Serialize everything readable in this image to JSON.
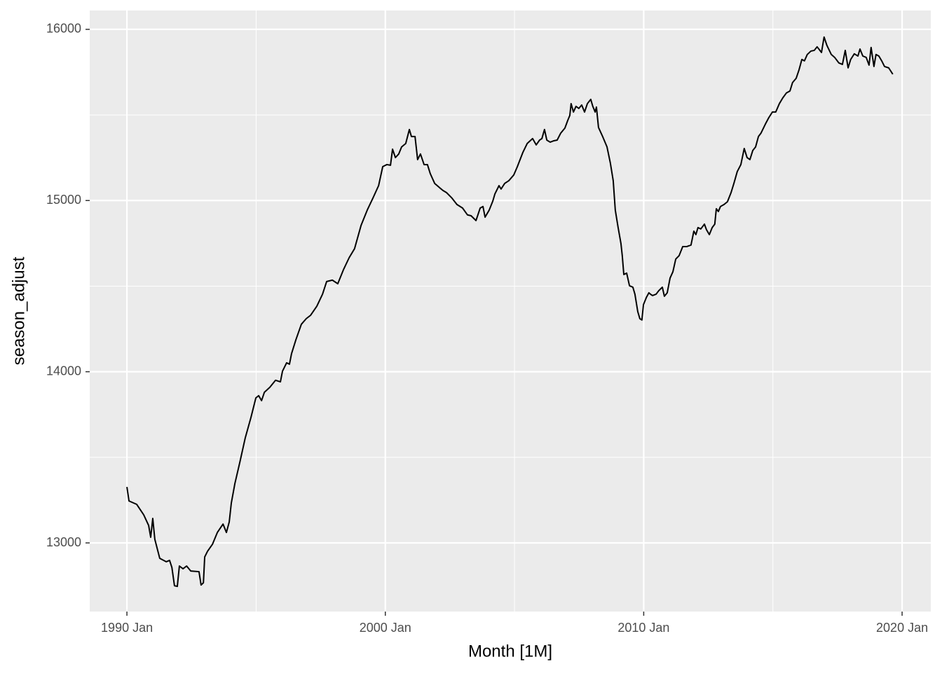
{
  "chart_data": {
    "type": "line",
    "x_label": "Month [1M]",
    "y_label": "season_adjust",
    "color": "#000000",
    "grid": true,
    "xlim": [
      1988.56,
      2021.11
    ],
    "ylim": [
      12599,
      16110
    ],
    "xticks": [
      {
        "value": 1990,
        "label": "1990 Jan"
      },
      {
        "value": 2000,
        "label": "2000 Jan"
      },
      {
        "value": 2010,
        "label": "2010 Jan"
      },
      {
        "value": 2020,
        "label": "2020 Jan"
      }
    ],
    "yticks": [
      13000,
      14000,
      15000,
      16000
    ],
    "x_minor_breaks": [
      1995,
      2005,
      2015
    ],
    "y_minor_breaks": [
      12500,
      13500,
      14500,
      15500
    ],
    "x": [
      1990.0,
      1990.08,
      1990.38,
      1990.65,
      1990.84,
      1990.92,
      1991.0,
      1991.08,
      1991.27,
      1991.52,
      1991.65,
      1991.74,
      1991.84,
      1991.95,
      1992.03,
      1992.17,
      1992.31,
      1992.47,
      1992.79,
      1992.87,
      1992.96,
      1993.01,
      1993.12,
      1993.31,
      1993.5,
      1993.72,
      1993.85,
      1993.96,
      1994.04,
      1994.18,
      1994.37,
      1994.58,
      1994.8,
      1994.99,
      1995.1,
      1995.21,
      1995.32,
      1995.53,
      1995.75,
      1995.94,
      1996.02,
      1996.18,
      1996.29,
      1996.37,
      1996.54,
      1996.75,
      1996.94,
      1997.11,
      1997.35,
      1997.57,
      1997.73,
      1997.95,
      1998.16,
      1998.38,
      1998.6,
      1998.81,
      1999.06,
      1999.3,
      1999.52,
      1999.74,
      1999.9,
      2000.06,
      2000.2,
      2000.28,
      2000.39,
      2000.52,
      2000.63,
      2000.79,
      2000.93,
      2001.01,
      2001.15,
      2001.25,
      2001.36,
      2001.5,
      2001.63,
      2001.74,
      2001.91,
      2002.1,
      2002.23,
      2002.37,
      2002.58,
      2002.77,
      2002.99,
      2003.18,
      2003.32,
      2003.51,
      2003.67,
      2003.78,
      2003.86,
      2004.02,
      2004.16,
      2004.24,
      2004.4,
      2004.48,
      2004.62,
      2004.78,
      2004.97,
      2005.11,
      2005.32,
      2005.49,
      2005.7,
      2005.84,
      2005.97,
      2006.06,
      2006.16,
      2006.25,
      2006.38,
      2006.52,
      2006.65,
      2006.79,
      2006.95,
      2007.06,
      2007.14,
      2007.19,
      2007.28,
      2007.38,
      2007.49,
      2007.6,
      2007.71,
      2007.82,
      2007.95,
      2008.03,
      2008.12,
      2008.17,
      2008.25,
      2008.41,
      2008.58,
      2008.71,
      2008.82,
      2008.9,
      2009.01,
      2009.12,
      2009.17,
      2009.23,
      2009.34,
      2009.45,
      2009.58,
      2009.66,
      2009.77,
      2009.85,
      2009.93,
      2009.99,
      2010.1,
      2010.2,
      2010.26,
      2010.34,
      2010.48,
      2010.58,
      2010.72,
      2010.8,
      2010.91,
      2011.02,
      2011.13,
      2011.24,
      2011.37,
      2011.51,
      2011.67,
      2011.83,
      2011.94,
      2012.02,
      2012.1,
      2012.21,
      2012.35,
      2012.43,
      2012.54,
      2012.65,
      2012.75,
      2012.81,
      2012.89,
      2012.97,
      2013.11,
      2013.24,
      2013.38,
      2013.49,
      2013.62,
      2013.76,
      2013.89,
      2014.0,
      2014.11,
      2014.22,
      2014.33,
      2014.44,
      2014.54,
      2014.71,
      2014.84,
      2014.98,
      2015.11,
      2015.25,
      2015.38,
      2015.52,
      2015.66,
      2015.76,
      2015.9,
      2016.01,
      2016.12,
      2016.22,
      2016.33,
      2016.47,
      2016.6,
      2016.71,
      2016.88,
      2016.98,
      2017.09,
      2017.26,
      2017.39,
      2017.55,
      2017.69,
      2017.8,
      2017.91,
      2018.01,
      2018.15,
      2018.29,
      2018.37,
      2018.48,
      2018.61,
      2018.72,
      2018.8,
      2018.91,
      2018.99,
      2019.1,
      2019.21,
      2019.32,
      2019.48,
      2019.64
    ],
    "values": [
      13327,
      13245,
      13225,
      13164,
      13102,
      13033,
      13143,
      13021,
      12910,
      12890,
      12898,
      12857,
      12750,
      12746,
      12865,
      12849,
      12865,
      12836,
      12832,
      12754,
      12767,
      12918,
      12951,
      12992,
      13061,
      13110,
      13061,
      13123,
      13233,
      13348,
      13471,
      13614,
      13733,
      13847,
      13860,
      13831,
      13880,
      13909,
      13950,
      13941,
      14003,
      14052,
      14044,
      14105,
      14187,
      14277,
      14310,
      14330,
      14383,
      14453,
      14527,
      14535,
      14514,
      14596,
      14666,
      14719,
      14854,
      14944,
      15014,
      15087,
      15198,
      15210,
      15206,
      15300,
      15251,
      15272,
      15313,
      15333,
      15415,
      15374,
      15374,
      15239,
      15272,
      15210,
      15210,
      15157,
      15100,
      15075,
      15059,
      15046,
      15014,
      14977,
      14956,
      14916,
      14911,
      14883,
      14956,
      14965,
      14903,
      14944,
      14997,
      15038,
      15087,
      15067,
      15100,
      15116,
      15149,
      15198,
      15280,
      15333,
      15362,
      15325,
      15353,
      15362,
      15415,
      15353,
      15341,
      15349,
      15353,
      15394,
      15423,
      15468,
      15497,
      15566,
      15517,
      15550,
      15538,
      15558,
      15517,
      15566,
      15591,
      15550,
      15517,
      15546,
      15427,
      15374,
      15313,
      15218,
      15116,
      14944,
      14842,
      14748,
      14678,
      14568,
      14576,
      14502,
      14494,
      14453,
      14351,
      14310,
      14302,
      14392,
      14433,
      14461,
      14453,
      14445,
      14453,
      14473,
      14494,
      14441,
      14461,
      14547,
      14584,
      14658,
      14678,
      14731,
      14731,
      14740,
      14821,
      14801,
      14842,
      14834,
      14862,
      14829,
      14801,
      14842,
      14862,
      14952,
      14936,
      14965,
      14977,
      14993,
      15046,
      15100,
      15169,
      15210,
      15304,
      15251,
      15239,
      15292,
      15313,
      15374,
      15394,
      15447,
      15484,
      15517,
      15517,
      15566,
      15599,
      15628,
      15640,
      15689,
      15714,
      15763,
      15824,
      15816,
      15853,
      15873,
      15877,
      15898,
      15865,
      15955,
      15906,
      15853,
      15836,
      15804,
      15795,
      15877,
      15775,
      15824,
      15857,
      15844,
      15885,
      15844,
      15836,
      15791,
      15894,
      15783,
      15853,
      15844,
      15816,
      15783,
      15775,
      15738
    ]
  }
}
